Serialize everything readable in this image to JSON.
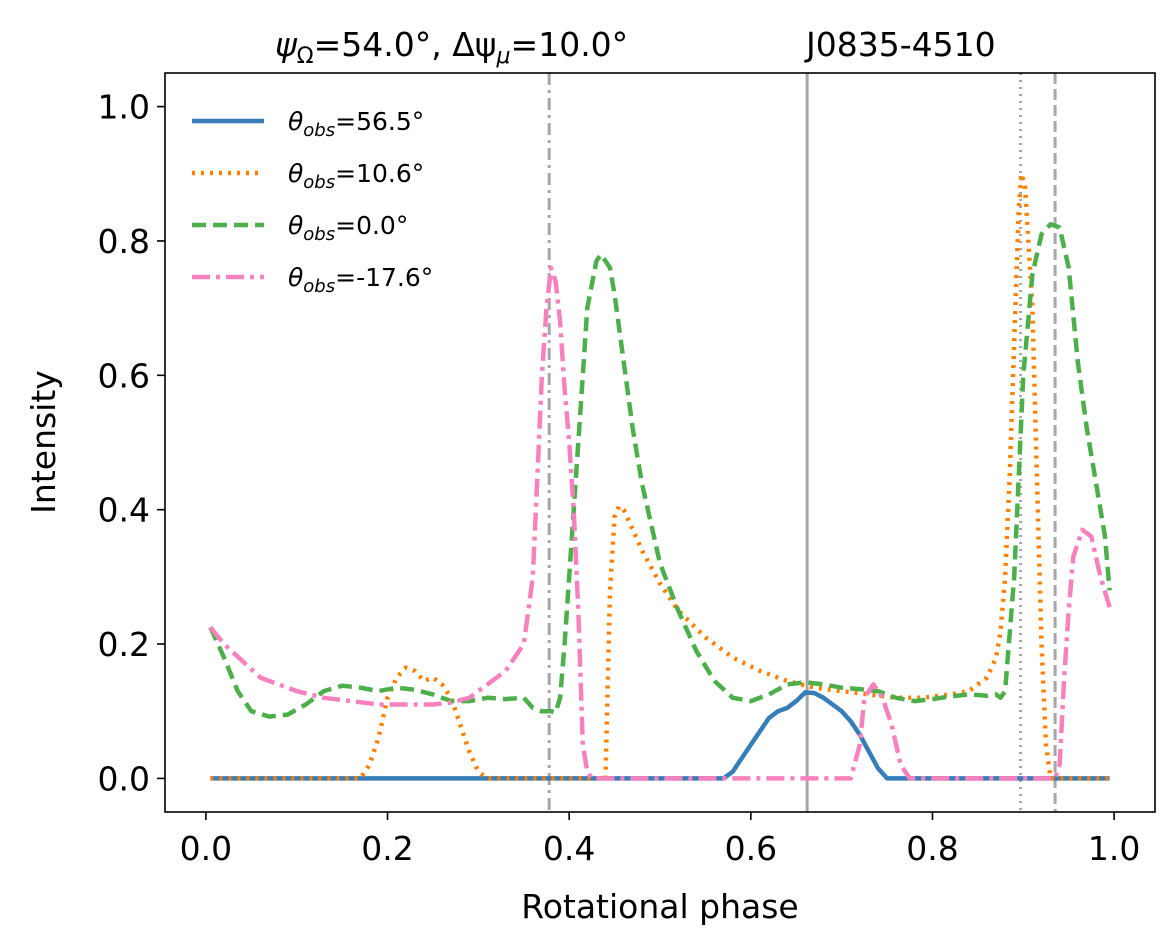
{
  "chart_data": {
    "type": "line",
    "title": {
      "left_part1": "ψ",
      "left_sub1": "Ω",
      "left_part2": "=54.0°, Δψ",
      "left_sub2": "μ",
      "left_part3": "=10.0°",
      "right": "J0835-4510"
    },
    "xlabel": "Rotational phase",
    "ylabel": "Intensity",
    "xlim": [
      -0.045,
      1.045
    ],
    "ylim": [
      -0.05,
      1.05
    ],
    "xticks": [
      0.0,
      0.2,
      0.4,
      0.6,
      0.8,
      1.0
    ],
    "xtick_labels": [
      "0.0",
      "0.2",
      "0.4",
      "0.6",
      "0.8",
      "1.0"
    ],
    "yticks": [
      0.0,
      0.2,
      0.4,
      0.6,
      0.8,
      1.0
    ],
    "ytick_labels": [
      "0.0",
      "0.2",
      "0.4",
      "0.6",
      "0.8",
      "1.0"
    ],
    "legend_position": "top-left",
    "vlines": [
      {
        "x": 0.378,
        "style": "dashdot",
        "color": "#a6a6a6"
      },
      {
        "x": 0.662,
        "style": "solid",
        "color": "#a6a6a6"
      },
      {
        "x": 0.897,
        "style": "dotted",
        "color": "#a6a6a6"
      },
      {
        "x": 0.935,
        "style": "dashed",
        "color": "#a6a6a6"
      }
    ],
    "series": [
      {
        "name": "56.5°",
        "color": "#377eb8",
        "style": "solid",
        "points": [
          [
            0.005,
            0.0
          ],
          [
            0.57,
            0.0
          ],
          [
            0.58,
            0.01
          ],
          [
            0.59,
            0.03
          ],
          [
            0.6,
            0.05
          ],
          [
            0.61,
            0.07
          ],
          [
            0.62,
            0.09
          ],
          [
            0.63,
            0.1
          ],
          [
            0.64,
            0.105
          ],
          [
            0.65,
            0.115
          ],
          [
            0.66,
            0.128
          ],
          [
            0.67,
            0.127
          ],
          [
            0.68,
            0.12
          ],
          [
            0.69,
            0.11
          ],
          [
            0.7,
            0.1
          ],
          [
            0.71,
            0.085
          ],
          [
            0.72,
            0.065
          ],
          [
            0.73,
            0.04
          ],
          [
            0.74,
            0.015
          ],
          [
            0.75,
            0.0
          ],
          [
            0.995,
            0.0
          ]
        ]
      },
      {
        "name": "10.6°",
        "color": "#ff7f00",
        "style": "dotted",
        "points": [
          [
            0.005,
            0.0
          ],
          [
            0.17,
            0.0
          ],
          [
            0.18,
            0.02
          ],
          [
            0.19,
            0.06
          ],
          [
            0.2,
            0.12
          ],
          [
            0.21,
            0.15
          ],
          [
            0.22,
            0.165
          ],
          [
            0.23,
            0.16
          ],
          [
            0.24,
            0.145
          ],
          [
            0.25,
            0.15
          ],
          [
            0.26,
            0.14
          ],
          [
            0.27,
            0.12
          ],
          [
            0.28,
            0.08
          ],
          [
            0.29,
            0.04
          ],
          [
            0.3,
            0.01
          ],
          [
            0.31,
            0.0
          ],
          [
            0.44,
            0.0
          ],
          [
            0.445,
            0.28
          ],
          [
            0.45,
            0.39
          ],
          [
            0.455,
            0.405
          ],
          [
            0.46,
            0.4
          ],
          [
            0.47,
            0.37
          ],
          [
            0.48,
            0.34
          ],
          [
            0.5,
            0.29
          ],
          [
            0.52,
            0.25
          ],
          [
            0.55,
            0.21
          ],
          [
            0.58,
            0.18
          ],
          [
            0.61,
            0.16
          ],
          [
            0.64,
            0.145
          ],
          [
            0.67,
            0.135
          ],
          [
            0.7,
            0.13
          ],
          [
            0.73,
            0.125
          ],
          [
            0.76,
            0.12
          ],
          [
            0.79,
            0.12
          ],
          [
            0.82,
            0.125
          ],
          [
            0.84,
            0.13
          ],
          [
            0.86,
            0.15
          ],
          [
            0.87,
            0.18
          ],
          [
            0.875,
            0.22
          ],
          [
            0.88,
            0.3
          ],
          [
            0.885,
            0.45
          ],
          [
            0.89,
            0.65
          ],
          [
            0.895,
            0.85
          ],
          [
            0.898,
            0.9
          ],
          [
            0.902,
            0.88
          ],
          [
            0.91,
            0.7
          ],
          [
            0.915,
            0.45
          ],
          [
            0.92,
            0.2
          ],
          [
            0.925,
            0.05
          ],
          [
            0.93,
            0.0
          ],
          [
            0.995,
            0.0
          ]
        ]
      },
      {
        "name": "0.0°",
        "color": "#4daf4a",
        "style": "dashed",
        "points": [
          [
            0.005,
            0.225
          ],
          [
            0.02,
            0.18
          ],
          [
            0.035,
            0.13
          ],
          [
            0.05,
            0.1
          ],
          [
            0.07,
            0.092
          ],
          [
            0.09,
            0.095
          ],
          [
            0.11,
            0.11
          ],
          [
            0.13,
            0.13
          ],
          [
            0.15,
            0.138
          ],
          [
            0.17,
            0.135
          ],
          [
            0.19,
            0.13
          ],
          [
            0.21,
            0.135
          ],
          [
            0.23,
            0.132
          ],
          [
            0.25,
            0.125
          ],
          [
            0.27,
            0.115
          ],
          [
            0.29,
            0.115
          ],
          [
            0.31,
            0.12
          ],
          [
            0.33,
            0.118
          ],
          [
            0.35,
            0.12
          ],
          [
            0.36,
            0.105
          ],
          [
            0.37,
            0.1
          ],
          [
            0.38,
            0.1
          ],
          [
            0.385,
            0.098
          ],
          [
            0.39,
            0.12
          ],
          [
            0.395,
            0.2
          ],
          [
            0.4,
            0.3
          ],
          [
            0.41,
            0.5
          ],
          [
            0.42,
            0.7
          ],
          [
            0.43,
            0.77
          ],
          [
            0.435,
            0.78
          ],
          [
            0.445,
            0.76
          ],
          [
            0.45,
            0.72
          ],
          [
            0.46,
            0.62
          ],
          [
            0.47,
            0.52
          ],
          [
            0.48,
            0.44
          ],
          [
            0.49,
            0.38
          ],
          [
            0.5,
            0.32
          ],
          [
            0.52,
            0.25
          ],
          [
            0.54,
            0.19
          ],
          [
            0.56,
            0.145
          ],
          [
            0.58,
            0.12
          ],
          [
            0.6,
            0.115
          ],
          [
            0.62,
            0.125
          ],
          [
            0.64,
            0.14
          ],
          [
            0.66,
            0.143
          ],
          [
            0.68,
            0.14
          ],
          [
            0.7,
            0.135
          ],
          [
            0.72,
            0.133
          ],
          [
            0.74,
            0.13
          ],
          [
            0.76,
            0.12
          ],
          [
            0.78,
            0.115
          ],
          [
            0.8,
            0.118
          ],
          [
            0.82,
            0.122
          ],
          [
            0.84,
            0.125
          ],
          [
            0.86,
            0.123
          ],
          [
            0.87,
            0.125
          ],
          [
            0.875,
            0.12
          ],
          [
            0.88,
            0.13
          ],
          [
            0.89,
            0.3
          ],
          [
            0.9,
            0.6
          ],
          [
            0.91,
            0.75
          ],
          [
            0.92,
            0.81
          ],
          [
            0.93,
            0.825
          ],
          [
            0.94,
            0.82
          ],
          [
            0.95,
            0.76
          ],
          [
            0.96,
            0.62
          ],
          [
            0.97,
            0.52
          ],
          [
            0.98,
            0.44
          ],
          [
            0.99,
            0.36
          ],
          [
            0.995,
            0.28
          ]
        ]
      },
      {
        "name": "-17.6°",
        "color": "#f781bf",
        "style": "dashdot",
        "points": [
          [
            0.005,
            0.225
          ],
          [
            0.02,
            0.2
          ],
          [
            0.04,
            0.175
          ],
          [
            0.06,
            0.15
          ],
          [
            0.08,
            0.14
          ],
          [
            0.1,
            0.13
          ],
          [
            0.13,
            0.12
          ],
          [
            0.16,
            0.115
          ],
          [
            0.19,
            0.11
          ],
          [
            0.22,
            0.11
          ],
          [
            0.25,
            0.11
          ],
          [
            0.27,
            0.113
          ],
          [
            0.29,
            0.12
          ],
          [
            0.31,
            0.14
          ],
          [
            0.33,
            0.16
          ],
          [
            0.35,
            0.2
          ],
          [
            0.36,
            0.3
          ],
          [
            0.365,
            0.45
          ],
          [
            0.37,
            0.6
          ],
          [
            0.375,
            0.7
          ],
          [
            0.38,
            0.76
          ],
          [
            0.385,
            0.74
          ],
          [
            0.39,
            0.68
          ],
          [
            0.395,
            0.58
          ],
          [
            0.4,
            0.5
          ],
          [
            0.405,
            0.4
          ],
          [
            0.41,
            0.25
          ],
          [
            0.415,
            0.05
          ],
          [
            0.42,
            0.01
          ],
          [
            0.425,
            0.0
          ],
          [
            0.71,
            0.0
          ],
          [
            0.72,
            0.05
          ],
          [
            0.725,
            0.12
          ],
          [
            0.735,
            0.14
          ],
          [
            0.745,
            0.12
          ],
          [
            0.755,
            0.08
          ],
          [
            0.765,
            0.02
          ],
          [
            0.775,
            0.0
          ],
          [
            0.935,
            0.0
          ],
          [
            0.94,
            0.02
          ],
          [
            0.945,
            0.15
          ],
          [
            0.95,
            0.25
          ],
          [
            0.955,
            0.33
          ],
          [
            0.965,
            0.37
          ],
          [
            0.975,
            0.36
          ],
          [
            0.985,
            0.3
          ],
          [
            0.995,
            0.255
          ]
        ]
      }
    ]
  },
  "legend_prefix": "θ",
  "legend_sub": "obs",
  "legend_eq": "="
}
